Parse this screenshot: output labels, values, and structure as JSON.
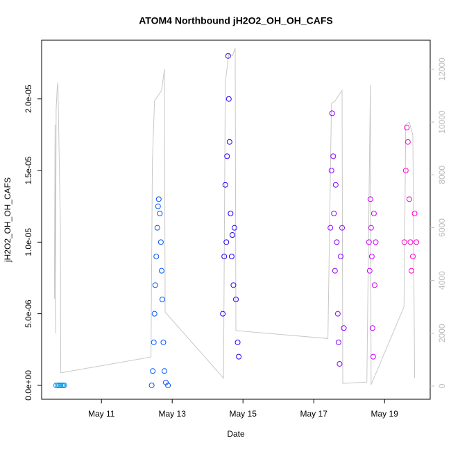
{
  "chart_data": {
    "type": "scatter",
    "title": "ATOM4 Northbound jH2O2_OH_OH_CAFS",
    "x_label": "Date",
    "y_label": "jH2O2_OH_OH_CAFS",
    "xlim": [
      9.31,
      20.29
    ],
    "xticks": [
      {
        "value": 11,
        "label": "May 11"
      },
      {
        "value": 13,
        "label": "May 13"
      },
      {
        "value": 15,
        "label": "May 15"
      },
      {
        "value": 17,
        "label": "May 17"
      },
      {
        "value": 19,
        "label": "May 19"
      }
    ],
    "ylim": [
      -9.7e-07,
      2.41e-05
    ],
    "yticks": [
      {
        "value": 0,
        "label": "0.0e+00"
      },
      {
        "value": 5e-06,
        "label": "5.0e-06"
      },
      {
        "value": 1e-05,
        "label": "1.0e-05"
      },
      {
        "value": 1.5e-05,
        "label": "1.5e-05"
      },
      {
        "value": 2e-05,
        "label": "2.0e-05"
      }
    ],
    "y2lim": [
      -500,
      13100
    ],
    "y2ticks": [
      0,
      2000,
      4000,
      6000,
      8000,
      10000,
      12000
    ],
    "series": [
      {
        "color": "#0099ee",
        "x": [
          9.72,
          9.76,
          9.8,
          9.84,
          9.88,
          9.92,
          9.95
        ],
        "values": [
          0,
          0,
          0,
          0,
          0,
          0,
          0
        ]
      },
      {
        "color": "#0055ff",
        "x": [
          12.42,
          12.45,
          12.48,
          12.5,
          12.52,
          12.55,
          12.58,
          12.6,
          12.62,
          12.65,
          12.68,
          12.7,
          12.72,
          12.75,
          12.78,
          12.82,
          12.88
        ],
        "values": [
          0,
          1e-06,
          3e-06,
          5e-06,
          7e-06,
          9e-06,
          1.1e-05,
          1.25e-05,
          1.3e-05,
          1.2e-05,
          1e-05,
          8e-06,
          6e-06,
          3e-06,
          1e-06,
          2e-07,
          0
        ]
      },
      {
        "color": "#2200ff",
        "x": [
          14.43,
          14.47,
          14.5,
          14.53,
          14.55,
          14.58,
          14.6,
          14.62,
          14.65,
          14.68,
          14.7,
          14.73,
          14.76,
          14.8,
          14.85,
          14.88
        ],
        "values": [
          5e-06,
          9e-06,
          1.4e-05,
          1e-05,
          1.6e-05,
          2.3e-05,
          2e-05,
          1.7e-05,
          1.2e-05,
          9e-06,
          1.05e-05,
          7e-06,
          1.1e-05,
          6e-06,
          3e-06,
          2e-06
        ]
      },
      {
        "color": "#8800ff",
        "x": [
          17.47,
          17.5,
          17.52,
          17.55,
          17.57,
          17.6,
          17.62,
          17.65,
          17.68,
          17.7,
          17.73,
          17.76,
          17.8,
          17.85
        ],
        "values": [
          1.1e-05,
          1.5e-05,
          1.9e-05,
          1.6e-05,
          1.2e-05,
          8e-06,
          1.4e-05,
          1e-05,
          5e-06,
          3e-06,
          1.5e-06,
          9e-06,
          1.1e-05,
          4e-06
        ]
      },
      {
        "color": "#cc00ff",
        "x": [
          18.56,
          18.58,
          18.6,
          18.62,
          18.64,
          18.66,
          18.68,
          18.7,
          18.72,
          18.75
        ],
        "values": [
          1e-05,
          8e-06,
          1.3e-05,
          1.1e-05,
          9e-06,
          4e-06,
          2e-06,
          1.2e-05,
          7e-06,
          1e-05
        ]
      },
      {
        "color": "#ff00cc",
        "x": [
          19.56,
          19.6,
          19.63,
          19.66,
          19.7,
          19.73,
          19.76,
          19.8,
          19.85,
          19.9
        ],
        "values": [
          1e-05,
          1.5e-05,
          1.8e-05,
          1.7e-05,
          1.3e-05,
          1e-05,
          8e-06,
          9e-06,
          1.2e-05,
          1e-05
        ]
      },
      {
        "color": "#c8c8c8",
        "axis": "y2",
        "x": [
          9.67,
          9.69,
          9.7,
          9.72,
          9.75,
          9.77,
          9.84,
          9.85,
          12.4,
          12.44,
          12.5,
          12.6,
          12.7,
          12.78,
          12.8,
          14.45,
          14.5,
          14.6,
          14.7,
          14.78,
          14.8,
          17.4,
          17.5,
          17.6,
          17.8,
          17.82,
          18.5,
          18.6,
          18.62,
          19.55,
          19.6,
          19.7,
          19.8,
          19.85
        ],
        "values": [
          3300,
          9900,
          2000,
          10500,
          11300,
          11500,
          6000,
          500,
          1100,
          8500,
          10800,
          11000,
          11200,
          12000,
          2800,
          300,
          11500,
          12600,
          12500,
          12800,
          2100,
          1800,
          10700,
          10800,
          11200,
          100,
          150,
          11400,
          50,
          3000,
          9900,
          10000,
          9500,
          300
        ]
      }
    ]
  }
}
